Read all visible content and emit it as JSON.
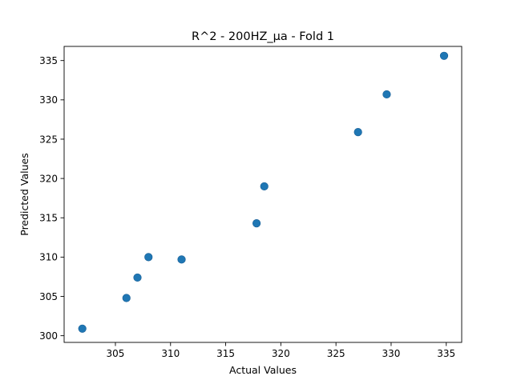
{
  "chart_data": {
    "type": "scatter",
    "title": "R^2 - 200HZ_μa - Fold 1",
    "xlabel": "Actual Values",
    "ylabel": "Predicted Values",
    "xlim": [
      300.35,
      336.4
    ],
    "ylim": [
      299.15,
      336.8
    ],
    "xticks": [
      305,
      310,
      315,
      320,
      325,
      330,
      335
    ],
    "yticks": [
      300,
      305,
      310,
      315,
      320,
      325,
      330,
      335
    ],
    "grid": false,
    "legend": "none",
    "marker_color": "#1f77b4",
    "points": [
      {
        "x": 302.0,
        "y": 300.9
      },
      {
        "x": 306.0,
        "y": 304.8
      },
      {
        "x": 307.0,
        "y": 307.4
      },
      {
        "x": 308.0,
        "y": 310.0
      },
      {
        "x": 311.0,
        "y": 309.7
      },
      {
        "x": 317.8,
        "y": 314.3
      },
      {
        "x": 318.5,
        "y": 319.0
      },
      {
        "x": 327.0,
        "y": 325.9
      },
      {
        "x": 329.6,
        "y": 330.7
      },
      {
        "x": 334.8,
        "y": 335.6
      }
    ]
  }
}
